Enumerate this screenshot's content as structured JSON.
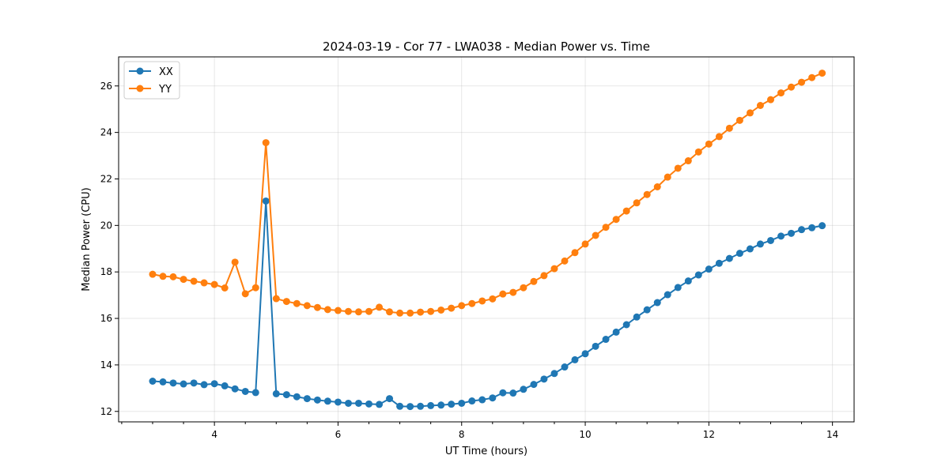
{
  "chart_data": {
    "type": "line",
    "title": "2024-03-19 - Cor 77 - LWA038 - Median Power vs. Time",
    "xlabel": "UT Time (hours)",
    "ylabel": "Median Power (CPU)",
    "xlim": [
      2.45,
      14.35
    ],
    "ylim": [
      11.55,
      27.25
    ],
    "xticks": [
      4,
      6,
      8,
      10,
      12,
      14
    ],
    "yticks": [
      12,
      14,
      16,
      18,
      20,
      22,
      24,
      26
    ],
    "grid": true,
    "legend_position": "top-left",
    "x": [
      3.0,
      3.167,
      3.333,
      3.5,
      3.667,
      3.833,
      4.0,
      4.167,
      4.333,
      4.5,
      4.667,
      4.833,
      5.0,
      5.167,
      5.333,
      5.5,
      5.667,
      5.833,
      6.0,
      6.167,
      6.333,
      6.5,
      6.667,
      6.833,
      7.0,
      7.167,
      7.333,
      7.5,
      7.667,
      7.833,
      8.0,
      8.167,
      8.333,
      8.5,
      8.667,
      8.833,
      9.0,
      9.167,
      9.333,
      9.5,
      9.667,
      9.833,
      10.0,
      10.167,
      10.333,
      10.5,
      10.667,
      10.833,
      11.0,
      11.167,
      11.333,
      11.5,
      11.667,
      11.833,
      12.0,
      12.167,
      12.333,
      12.5,
      12.667,
      12.833,
      13.0,
      13.167,
      13.333,
      13.5,
      13.667,
      13.833
    ],
    "series": [
      {
        "name": "XX",
        "color": "#1f77b4",
        "values": [
          13.3,
          13.27,
          13.22,
          13.18,
          13.22,
          13.15,
          13.19,
          13.1,
          12.97,
          12.86,
          12.81,
          21.05,
          12.76,
          12.72,
          12.63,
          12.55,
          12.49,
          12.44,
          12.4,
          12.35,
          12.35,
          12.32,
          12.3,
          12.55,
          12.22,
          12.21,
          12.22,
          12.25,
          12.27,
          12.31,
          12.35,
          12.45,
          12.5,
          12.58,
          12.8,
          12.79,
          12.95,
          13.16,
          13.39,
          13.63,
          13.91,
          14.22,
          14.48,
          14.8,
          15.1,
          15.41,
          15.73,
          16.06,
          16.37,
          16.68,
          17.02,
          17.33,
          17.61,
          17.87,
          18.12,
          18.37,
          18.58,
          18.8,
          18.99,
          19.2,
          19.35,
          19.54,
          19.66,
          19.82,
          19.9,
          19.99
        ]
      },
      {
        "name": "YY",
        "color": "#ff7f0e",
        "values": [
          17.9,
          17.81,
          17.79,
          17.68,
          17.6,
          17.53,
          17.46,
          17.31,
          18.42,
          17.06,
          17.32,
          23.56,
          16.85,
          16.73,
          16.64,
          16.55,
          16.47,
          16.38,
          16.34,
          16.3,
          16.28,
          16.3,
          16.48,
          16.28,
          16.23,
          16.23,
          16.27,
          16.3,
          16.36,
          16.44,
          16.55,
          16.64,
          16.75,
          16.84,
          17.05,
          17.12,
          17.32,
          17.59,
          17.84,
          18.14,
          18.47,
          18.83,
          19.2,
          19.57,
          19.92,
          20.26,
          20.62,
          20.97,
          21.33,
          21.66,
          22.08,
          22.46,
          22.78,
          23.16,
          23.5,
          23.82,
          24.18,
          24.52,
          24.84,
          25.16,
          25.41,
          25.7,
          25.95,
          26.16,
          26.36,
          26.55
        ]
      }
    ]
  }
}
